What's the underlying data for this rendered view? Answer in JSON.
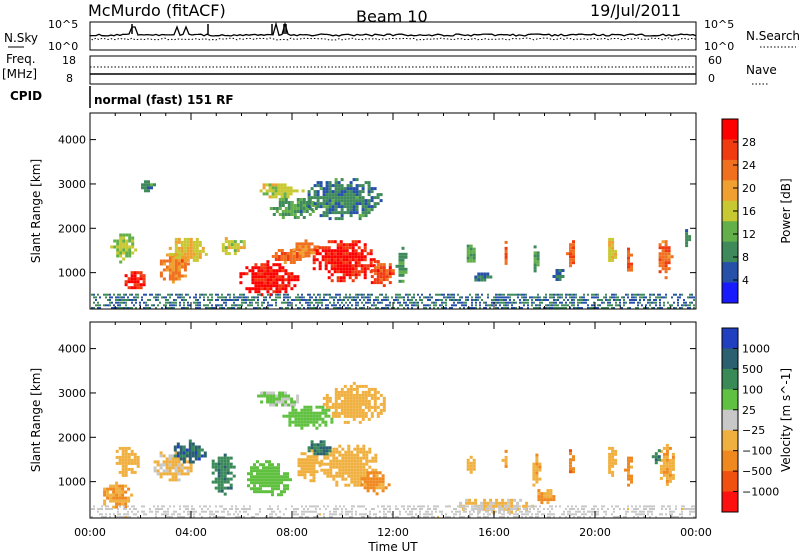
{
  "header": {
    "station": "McMurdo (fitACF)",
    "beam": "Beam 10",
    "date": "19/Jul/2011"
  },
  "sky_panel": {
    "left_label": "N.Sky",
    "right_label": "N.Search",
    "left_ticks": [
      "10^5",
      "10^0"
    ],
    "right_ticks": [
      "10^5",
      "10^0"
    ]
  },
  "freq_panel": {
    "left_label": "Freq.",
    "left_unit": "[MHz]",
    "cpid_label": "CPID",
    "right_label": "Nave",
    "left_ticks": [
      "18",
      "8"
    ],
    "right_ticks": [
      "60",
      "0"
    ],
    "mode_text": "normal (fast) 151 RF"
  },
  "colors": {
    "power": [
      "#1a1aff",
      "#2750a8",
      "#3f8a5a",
      "#63b04a",
      "#c8c832",
      "#f0a030",
      "#f07020",
      "#f03a10",
      "#ff0000"
    ],
    "velocity": [
      "#2040c0",
      "#2a6070",
      "#3a8a58",
      "#60c040",
      "#c8c8c8",
      "#f0b040",
      "#f08820",
      "#f05010",
      "#ff1010"
    ]
  },
  "chart_data": [
    {
      "type": "heatmap",
      "name": "power",
      "ylabel": "Slant Range [km]",
      "xlabel": "",
      "yticks": [
        1000,
        2000,
        3000,
        4000
      ],
      "ylim": [
        180,
        4600
      ],
      "xlim_hours": [
        0,
        24
      ],
      "colorbar": {
        "label": "Power [dB]",
        "ticks": [
          "4",
          "8",
          "12",
          "16",
          "20",
          "24",
          "28"
        ],
        "range": [
          0,
          32
        ]
      },
      "blobs": [
        {
          "t": 1.7,
          "r": 850,
          "dt": 0.9,
          "dr": 250,
          "v": 28
        },
        {
          "t": 1.3,
          "r": 1600,
          "dt": 1.0,
          "dr": 350,
          "v": 14
        },
        {
          "t": 3.3,
          "r": 1150,
          "dt": 1.3,
          "dr": 350,
          "v": 22
        },
        {
          "t": 3.8,
          "r": 1550,
          "dt": 1.6,
          "dr": 300,
          "v": 18
        },
        {
          "t": 5.6,
          "r": 1650,
          "dt": 1.0,
          "dr": 220,
          "v": 16
        },
        {
          "t": 7.0,
          "r": 900,
          "dt": 2.4,
          "dr": 380,
          "v": 30
        },
        {
          "t": 7.8,
          "r": 1400,
          "dt": 1.2,
          "dr": 200,
          "v": 24
        },
        {
          "t": 8.5,
          "r": 1550,
          "dt": 1.2,
          "dr": 200,
          "v": 22
        },
        {
          "t": 10.0,
          "r": 1300,
          "dt": 2.6,
          "dr": 500,
          "v": 29
        },
        {
          "t": 11.5,
          "r": 1000,
          "dt": 1.0,
          "dr": 350,
          "v": 26
        },
        {
          "t": 12.3,
          "r": 1200,
          "dt": 0.4,
          "dr": 450,
          "v": 10
        },
        {
          "t": 7.5,
          "r": 2900,
          "dt": 1.8,
          "dr": 180,
          "v": 16
        },
        {
          "t": 8.0,
          "r": 2500,
          "dt": 2.0,
          "dr": 250,
          "v": 10
        },
        {
          "t": 10.0,
          "r": 2700,
          "dt": 3.0,
          "dr": 500,
          "v": 8
        },
        {
          "t": 15.0,
          "r": 1400,
          "dt": 0.4,
          "dr": 300,
          "v": 12
        },
        {
          "t": 16.4,
          "r": 1500,
          "dt": 0.2,
          "dr": 350,
          "v": 24
        },
        {
          "t": 17.6,
          "r": 1350,
          "dt": 0.3,
          "dr": 400,
          "v": 10
        },
        {
          "t": 19.0,
          "r": 1450,
          "dt": 0.3,
          "dr": 350,
          "v": 24
        },
        {
          "t": 20.6,
          "r": 1500,
          "dt": 0.4,
          "dr": 350,
          "v": 18
        },
        {
          "t": 21.3,
          "r": 1300,
          "dt": 0.3,
          "dr": 400,
          "v": 24
        },
        {
          "t": 22.7,
          "r": 1350,
          "dt": 0.6,
          "dr": 450,
          "v": 24
        },
        {
          "t": 23.6,
          "r": 1800,
          "dt": 0.3,
          "dr": 250,
          "v": 8
        },
        {
          "t": 15.5,
          "r": 950,
          "dt": 0.8,
          "dr": 120,
          "v": 6
        },
        {
          "t": 18.5,
          "r": 1000,
          "dt": 0.6,
          "dr": 150,
          "v": 6
        },
        {
          "t": 2.2,
          "r": 3000,
          "dt": 0.6,
          "dr": 150,
          "v": 8
        }
      ],
      "ground_clutter": {
        "r_max": 500,
        "density": 0.6,
        "v": 7
      }
    },
    {
      "type": "heatmap",
      "name": "velocity",
      "ylabel": "Slant Range [km]",
      "xlabel": "Time UT",
      "yticks": [
        1000,
        2000,
        3000,
        4000
      ],
      "ylim": [
        180,
        4600
      ],
      "xlim_hours": [
        0,
        24
      ],
      "xticks": [
        "00:00",
        "04:00",
        "08:00",
        "12:00",
        "16:00",
        "20:00",
        "00:00"
      ],
      "colorbar": {
        "label": "Velocity [m s^-1]",
        "ticks": [
          "1000",
          "500",
          "100",
          "25",
          "−25",
          "−100",
          "−500",
          "−1000"
        ],
        "range": [
          -1250,
          1250
        ]
      },
      "blobs": [
        {
          "t": 1.4,
          "r": 1500,
          "dt": 1.0,
          "dr": 350,
          "v": -200
        },
        {
          "t": 1.0,
          "r": 700,
          "dt": 1.2,
          "dr": 300,
          "v": -400
        },
        {
          "t": 3.2,
          "r": 1400,
          "dt": 1.6,
          "dr": 350,
          "v": -150
        },
        {
          "t": 3.9,
          "r": 1700,
          "dt": 1.4,
          "dr": 250,
          "v": 800
        },
        {
          "t": 5.2,
          "r": 1200,
          "dt": 1.0,
          "dr": 500,
          "v": 600
        },
        {
          "t": 7.0,
          "r": 1100,
          "dt": 1.8,
          "dr": 450,
          "v": 300
        },
        {
          "t": 8.6,
          "r": 1400,
          "dt": 1.0,
          "dr": 400,
          "v": -300
        },
        {
          "t": 10.2,
          "r": 1400,
          "dt": 2.4,
          "dr": 500,
          "v": -250
        },
        {
          "t": 11.2,
          "r": 1000,
          "dt": 1.2,
          "dr": 300,
          "v": -500
        },
        {
          "t": 9.0,
          "r": 1800,
          "dt": 1.0,
          "dr": 200,
          "v": 700
        },
        {
          "t": 7.4,
          "r": 2900,
          "dt": 1.8,
          "dr": 200,
          "v": 150
        },
        {
          "t": 8.6,
          "r": 2500,
          "dt": 2.2,
          "dr": 280,
          "v": 200
        },
        {
          "t": 10.4,
          "r": 2800,
          "dt": 2.6,
          "dr": 450,
          "v": -200
        },
        {
          "t": 15.0,
          "r": 1400,
          "dt": 0.4,
          "dr": 250,
          "v": -300
        },
        {
          "t": 16.4,
          "r": 1500,
          "dt": 0.2,
          "dr": 350,
          "v": -400
        },
        {
          "t": 17.6,
          "r": 1300,
          "dt": 0.4,
          "dr": 400,
          "v": -350
        },
        {
          "t": 19.0,
          "r": 1450,
          "dt": 0.3,
          "dr": 350,
          "v": -600
        },
        {
          "t": 20.6,
          "r": 1500,
          "dt": 0.4,
          "dr": 350,
          "v": -300
        },
        {
          "t": 21.3,
          "r": 1300,
          "dt": 0.3,
          "dr": 400,
          "v": -500
        },
        {
          "t": 22.8,
          "r": 1400,
          "dt": 0.7,
          "dr": 450,
          "v": -350
        },
        {
          "t": 22.4,
          "r": 1600,
          "dt": 0.3,
          "dr": 200,
          "v": 700
        },
        {
          "t": 18.0,
          "r": 700,
          "dt": 0.8,
          "dr": 200,
          "v": -400
        },
        {
          "t": 16.0,
          "r": 500,
          "dt": 3.0,
          "dr": 180,
          "v": -150
        }
      ],
      "ground_clutter": {
        "r_max": 450,
        "density": 0.45,
        "v": -60
      }
    }
  ]
}
